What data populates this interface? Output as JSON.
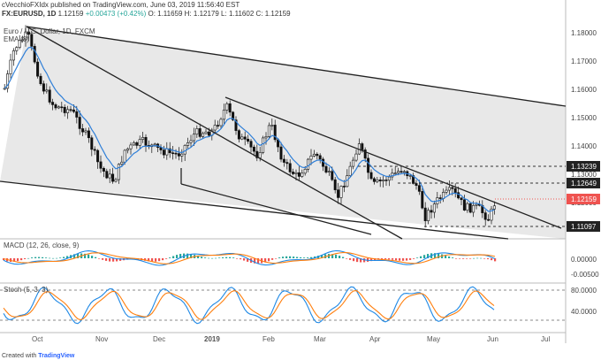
{
  "header": {
    "publisher_line": "cVecchioFXIdx published on TradingView.com, June 03, 2019 11:56:40 EST",
    "symbol": "FX:EURUSD, 1D",
    "last_price": "1.12159",
    "change": "+0.00473 (+0.42%)",
    "ohlc": "O: 1.11659  H: 1.12179  L: 1.11602  C: 1.12159",
    "series_name": "Euro / U.S. Dollar, 1D, FXCM",
    "ema_label": "EMA (8)"
  },
  "price_axis": {
    "ticks": [
      "1.18000",
      "1.17000",
      "1.16000",
      "1.15000",
      "1.14000",
      "1.13000",
      "1.12000"
    ],
    "badges": [
      {
        "value": "1.13239",
        "color": "#222222"
      },
      {
        "value": "1.12649",
        "color": "#222222"
      },
      {
        "value": "1.12159",
        "color": "#ef5350"
      },
      {
        "value": "1.11097",
        "color": "#222222"
      }
    ]
  },
  "macd_panel": {
    "label": "MACD (12, 26, close, 9)",
    "ticks": [
      "0.00000",
      "-0.00500"
    ]
  },
  "stoch_panel": {
    "label": "Stoch (5, 3, 3)",
    "ticks": [
      "80.0000",
      "40.0000"
    ]
  },
  "time_axis": [
    "Oct",
    "Nov",
    "Dec",
    "2019",
    "Feb",
    "Mar",
    "Apr",
    "May",
    "Jun",
    "Jul"
  ],
  "footer": {
    "prefix": "Created with",
    "brand": "TradingView"
  },
  "colors": {
    "up_candle": "#ffffff",
    "down_candle": "#111111",
    "ema": "#2f7fd8",
    "macd_line": "#1e88e5",
    "signal_line": "#ff7f0e",
    "hist_pos": "#26a69a",
    "hist_neg": "#ef5350",
    "channel_fill": "#e8e8e8"
  }
}
